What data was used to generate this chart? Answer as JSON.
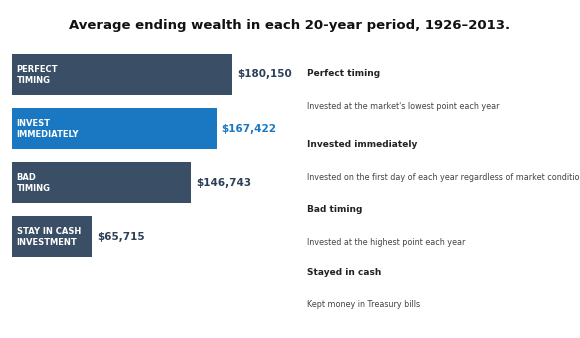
{
  "title": "Average ending wealth in each 20-year period, 1926–2013.",
  "background_color": "#dde3ea",
  "fig_bg": "#ffffff",
  "bars": [
    {
      "label_line1": "PERFECT",
      "label_line2": "TIMING",
      "value": 180150,
      "display": "$180,150",
      "bar_color": "#3a4f66",
      "text_color": "#ffffff",
      "val_color": "#2e4057"
    },
    {
      "label_line1": "INVEST",
      "label_line2": "IMMEDIATELY",
      "value": 167422,
      "display": "$167,422",
      "bar_color": "#1a78c2",
      "text_color": "#ffffff",
      "val_color": "#1a78c2"
    },
    {
      "label_line1": "BAD",
      "label_line2": "TIMING",
      "value": 146743,
      "display": "$146,743",
      "bar_color": "#3a4f66",
      "text_color": "#ffffff",
      "val_color": "#2e4057"
    },
    {
      "label_line1": "STAY IN CASH",
      "label_line2": "INVESTMENT",
      "value": 65715,
      "display": "$65,715",
      "bar_color": "#3a4f66",
      "text_color": "#ffffff",
      "val_color": "#2e4057"
    }
  ],
  "legend_items": [
    {
      "title": "Perfect timing",
      "desc": "Invested at the market's lowest point each year"
    },
    {
      "title": "Invested immediately",
      "desc": "Invested on the first day of each year regardless of market conditions"
    },
    {
      "title": "Bad timing",
      "desc": "Invested at the highest point each year"
    },
    {
      "title": "Stayed in cash",
      "desc": "Kept money in Treasury bills"
    }
  ],
  "max_value": 200000,
  "title_fontsize": 9.5,
  "bar_label_fontsize": 6.0,
  "value_fontsize": 7.5,
  "legend_title_fontsize": 6.5,
  "legend_desc_fontsize": 5.8
}
